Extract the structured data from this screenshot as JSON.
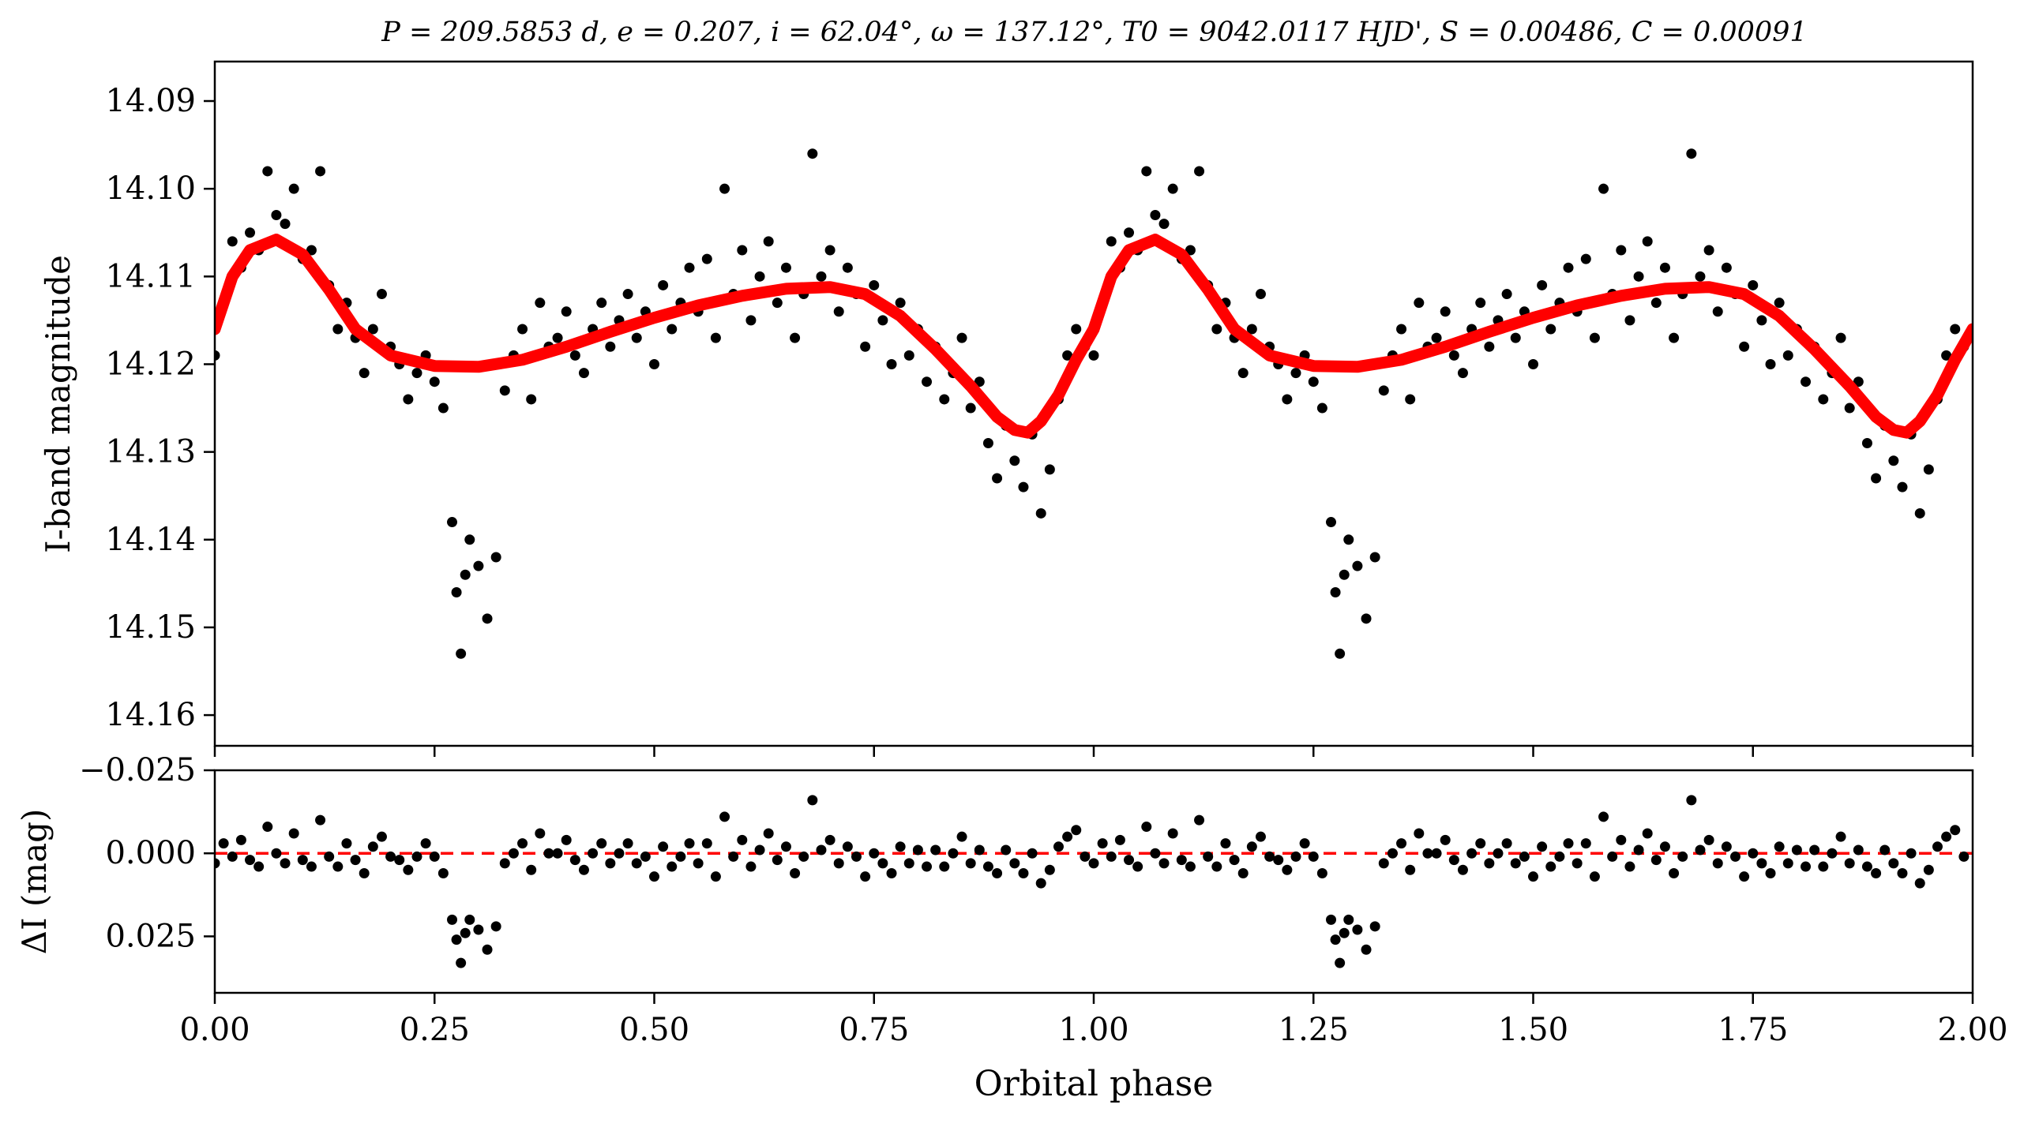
{
  "chart_data": [
    {
      "type": "scatter",
      "panel": "light-curve",
      "title": "P = 209.5853 d, e = 0.207, i = 62.04°, ω = 137.12°, T0 = 9042.0117 HJD', S = 0.00486, C = 0.00091",
      "xlabel": "Orbital phase",
      "ylabel": "I-band magnitude",
      "xlim": [
        0.0,
        2.0
      ],
      "ylim": [
        14.1635,
        14.0855
      ],
      "y_inverted": true,
      "xticks": [
        "0.00",
        "0.25",
        "0.50",
        "0.75",
        "1.00",
        "1.25",
        "1.50",
        "1.75",
        "2.00"
      ],
      "yticks": [
        "14.09",
        "14.10",
        "14.11",
        "14.12",
        "14.13",
        "14.14",
        "14.15",
        "14.16"
      ],
      "grid": false,
      "colors": {
        "points": "#000000",
        "model": "#ff0000"
      },
      "series": [
        {
          "kind": "points",
          "period_in_phase": 1.0,
          "observations": [
            [
              0.0,
              14.119
            ],
            [
              0.01,
              14.113
            ],
            [
              0.02,
              14.106
            ],
            [
              0.03,
              14.109
            ],
            [
              0.04,
              14.105
            ],
            [
              0.05,
              14.107
            ],
            [
              0.06,
              14.098
            ],
            [
              0.07,
              14.103
            ],
            [
              0.08,
              14.104
            ],
            [
              0.09,
              14.1
            ],
            [
              0.1,
              14.108
            ],
            [
              0.11,
              14.107
            ],
            [
              0.12,
              14.098
            ],
            [
              0.13,
              14.111
            ],
            [
              0.14,
              14.116
            ],
            [
              0.15,
              14.113
            ],
            [
              0.16,
              14.117
            ],
            [
              0.17,
              14.121
            ],
            [
              0.18,
              14.116
            ],
            [
              0.19,
              14.112
            ],
            [
              0.2,
              14.118
            ],
            [
              0.21,
              14.12
            ],
            [
              0.22,
              14.124
            ],
            [
              0.23,
              14.121
            ],
            [
              0.24,
              14.119
            ],
            [
              0.25,
              14.122
            ],
            [
              0.26,
              14.125
            ],
            [
              0.27,
              14.138
            ],
            [
              0.275,
              14.146
            ],
            [
              0.28,
              14.153
            ],
            [
              0.285,
              14.144
            ],
            [
              0.29,
              14.14
            ],
            [
              0.3,
              14.143
            ],
            [
              0.31,
              14.149
            ],
            [
              0.32,
              14.142
            ],
            [
              0.33,
              14.123
            ],
            [
              0.34,
              14.119
            ],
            [
              0.35,
              14.116
            ],
            [
              0.36,
              14.124
            ],
            [
              0.37,
              14.113
            ],
            [
              0.38,
              14.118
            ],
            [
              0.39,
              14.117
            ],
            [
              0.4,
              14.114
            ],
            [
              0.41,
              14.119
            ],
            [
              0.42,
              14.121
            ],
            [
              0.43,
              14.116
            ],
            [
              0.44,
              14.113
            ],
            [
              0.45,
              14.118
            ],
            [
              0.46,
              14.115
            ],
            [
              0.47,
              14.112
            ],
            [
              0.48,
              14.117
            ],
            [
              0.49,
              14.114
            ],
            [
              0.5,
              14.12
            ],
            [
              0.51,
              14.111
            ],
            [
              0.52,
              14.116
            ],
            [
              0.53,
              14.113
            ],
            [
              0.54,
              14.109
            ],
            [
              0.55,
              14.114
            ],
            [
              0.56,
              14.108
            ],
            [
              0.57,
              14.117
            ],
            [
              0.58,
              14.1
            ],
            [
              0.59,
              14.112
            ],
            [
              0.6,
              14.107
            ],
            [
              0.61,
              14.115
            ],
            [
              0.62,
              14.11
            ],
            [
              0.63,
              14.106
            ],
            [
              0.64,
              14.113
            ],
            [
              0.65,
              14.109
            ],
            [
              0.66,
              14.117
            ],
            [
              0.67,
              14.112
            ],
            [
              0.68,
              14.096
            ],
            [
              0.69,
              14.11
            ],
            [
              0.7,
              14.107
            ],
            [
              0.71,
              14.114
            ],
            [
              0.72,
              14.109
            ],
            [
              0.73,
              14.112
            ],
            [
              0.74,
              14.118
            ],
            [
              0.75,
              14.111
            ],
            [
              0.76,
              14.115
            ],
            [
              0.77,
              14.12
            ],
            [
              0.78,
              14.113
            ],
            [
              0.79,
              14.119
            ],
            [
              0.8,
              14.116
            ],
            [
              0.81,
              14.122
            ],
            [
              0.82,
              14.118
            ],
            [
              0.83,
              14.124
            ],
            [
              0.84,
              14.121
            ],
            [
              0.85,
              14.117
            ],
            [
              0.86,
              14.125
            ],
            [
              0.87,
              14.122
            ],
            [
              0.88,
              14.129
            ],
            [
              0.89,
              14.133
            ],
            [
              0.9,
              14.127
            ],
            [
              0.91,
              14.131
            ],
            [
              0.92,
              14.134
            ],
            [
              0.93,
              14.128
            ],
            [
              0.94,
              14.137
            ],
            [
              0.95,
              14.132
            ],
            [
              0.96,
              14.124
            ],
            [
              0.97,
              14.119
            ],
            [
              0.98,
              14.116
            ],
            [
              0.99,
              14.118
            ]
          ]
        },
        {
          "kind": "line",
          "model": [
            [
              0.0,
              14.116
            ],
            [
              0.02,
              14.11
            ],
            [
              0.04,
              14.107
            ],
            [
              0.07,
              14.1058
            ],
            [
              0.1,
              14.1075
            ],
            [
              0.13,
              14.1115
            ],
            [
              0.16,
              14.116
            ],
            [
              0.2,
              14.119
            ],
            [
              0.25,
              14.1202
            ],
            [
              0.3,
              14.1203
            ],
            [
              0.35,
              14.1195
            ],
            [
              0.4,
              14.118
            ],
            [
              0.45,
              14.1163
            ],
            [
              0.5,
              14.1147
            ],
            [
              0.55,
              14.1133
            ],
            [
              0.6,
              14.1122
            ],
            [
              0.65,
              14.1114
            ],
            [
              0.7,
              14.1112
            ],
            [
              0.74,
              14.112
            ],
            [
              0.78,
              14.1145
            ],
            [
              0.82,
              14.1183
            ],
            [
              0.86,
              14.1225
            ],
            [
              0.89,
              14.126
            ],
            [
              0.91,
              14.1275
            ],
            [
              0.925,
              14.1278
            ],
            [
              0.94,
              14.1265
            ],
            [
              0.96,
              14.1235
            ],
            [
              0.98,
              14.1195
            ],
            [
              1.0,
              14.116
            ]
          ]
        }
      ]
    },
    {
      "type": "scatter",
      "panel": "residuals",
      "xlabel": "Orbital phase",
      "ylabel": "ΔI (mag)",
      "xlim": [
        0.0,
        2.0
      ],
      "ylim": [
        0.042,
        -0.025
      ],
      "y_inverted": true,
      "xticks": [
        "0.00",
        "0.25",
        "0.50",
        "0.75",
        "1.00",
        "1.25",
        "1.50",
        "1.75",
        "2.00"
      ],
      "yticks": [
        "−0.025",
        "0.000",
        "0.025"
      ],
      "zero_line": 0.0,
      "colors": {
        "points": "#000000",
        "zero_line": "#ff0000"
      },
      "series": [
        {
          "kind": "points",
          "period_in_phase": 1.0,
          "observations": [
            [
              0.0,
              0.003
            ],
            [
              0.01,
              -0.003
            ],
            [
              0.02,
              0.001
            ],
            [
              0.03,
              -0.004
            ],
            [
              0.04,
              0.002
            ],
            [
              0.05,
              0.004
            ],
            [
              0.06,
              -0.008
            ],
            [
              0.07,
              0.0
            ],
            [
              0.08,
              0.003
            ],
            [
              0.09,
              -0.006
            ],
            [
              0.1,
              0.002
            ],
            [
              0.11,
              0.004
            ],
            [
              0.12,
              -0.01
            ],
            [
              0.13,
              0.001
            ],
            [
              0.14,
              0.004
            ],
            [
              0.15,
              -0.003
            ],
            [
              0.16,
              0.002
            ],
            [
              0.17,
              0.006
            ],
            [
              0.18,
              -0.002
            ],
            [
              0.19,
              -0.005
            ],
            [
              0.2,
              0.001
            ],
            [
              0.21,
              0.002
            ],
            [
              0.22,
              0.005
            ],
            [
              0.23,
              0.001
            ],
            [
              0.24,
              -0.003
            ],
            [
              0.25,
              0.001
            ],
            [
              0.26,
              0.006
            ],
            [
              0.27,
              0.02
            ],
            [
              0.275,
              0.026
            ],
            [
              0.28,
              0.033
            ],
            [
              0.285,
              0.024
            ],
            [
              0.29,
              0.02
            ],
            [
              0.3,
              0.023
            ],
            [
              0.31,
              0.029
            ],
            [
              0.32,
              0.022
            ],
            [
              0.33,
              0.003
            ],
            [
              0.34,
              0.0
            ],
            [
              0.35,
              -0.003
            ],
            [
              0.36,
              0.005
            ],
            [
              0.37,
              -0.006
            ],
            [
              0.38,
              0.0
            ],
            [
              0.39,
              0.0
            ],
            [
              0.4,
              -0.004
            ],
            [
              0.41,
              0.002
            ],
            [
              0.42,
              0.005
            ],
            [
              0.43,
              0.0
            ],
            [
              0.44,
              -0.003
            ],
            [
              0.45,
              0.003
            ],
            [
              0.46,
              0.0
            ],
            [
              0.47,
              -0.003
            ],
            [
              0.48,
              0.003
            ],
            [
              0.49,
              0.001
            ],
            [
              0.5,
              0.007
            ],
            [
              0.51,
              -0.002
            ],
            [
              0.52,
              0.004
            ],
            [
              0.53,
              0.001
            ],
            [
              0.54,
              -0.003
            ],
            [
              0.55,
              0.003
            ],
            [
              0.56,
              -0.003
            ],
            [
              0.57,
              0.007
            ],
            [
              0.58,
              -0.011
            ],
            [
              0.59,
              0.001
            ],
            [
              0.6,
              -0.004
            ],
            [
              0.61,
              0.004
            ],
            [
              0.62,
              -0.001
            ],
            [
              0.63,
              -0.006
            ],
            [
              0.64,
              0.002
            ],
            [
              0.65,
              -0.002
            ],
            [
              0.66,
              0.006
            ],
            [
              0.67,
              0.001
            ],
            [
              0.68,
              -0.016
            ],
            [
              0.69,
              -0.001
            ],
            [
              0.7,
              -0.004
            ],
            [
              0.71,
              0.003
            ],
            [
              0.72,
              -0.002
            ],
            [
              0.73,
              0.001
            ],
            [
              0.74,
              0.007
            ],
            [
              0.75,
              0.0
            ],
            [
              0.76,
              0.003
            ],
            [
              0.77,
              0.006
            ],
            [
              0.78,
              -0.002
            ],
            [
              0.79,
              0.003
            ],
            [
              0.8,
              -0.001
            ],
            [
              0.81,
              0.004
            ],
            [
              0.82,
              -0.001
            ],
            [
              0.83,
              0.004
            ],
            [
              0.84,
              0.0
            ],
            [
              0.85,
              -0.005
            ],
            [
              0.86,
              0.003
            ],
            [
              0.87,
              -0.001
            ],
            [
              0.88,
              0.004
            ],
            [
              0.89,
              0.006
            ],
            [
              0.9,
              -0.001
            ],
            [
              0.91,
              0.003
            ],
            [
              0.92,
              0.006
            ],
            [
              0.93,
              0.0
            ],
            [
              0.94,
              0.009
            ],
            [
              0.95,
              0.005
            ],
            [
              0.96,
              -0.002
            ],
            [
              0.97,
              -0.005
            ],
            [
              0.98,
              -0.007
            ],
            [
              0.99,
              0.001
            ]
          ]
        }
      ]
    }
  ]
}
